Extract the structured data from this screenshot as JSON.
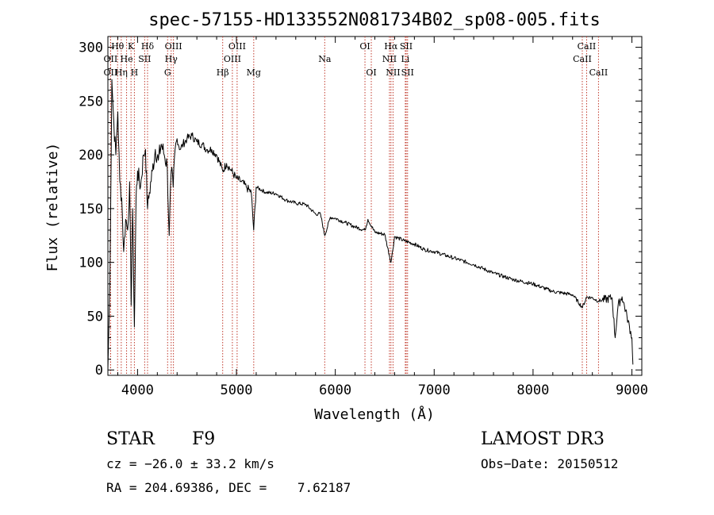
{
  "chart_data": {
    "type": "line",
    "title": "spec-57155-HD133552N081734B02_sp08-005.fits",
    "xlabel": "Wavelength (Å)",
    "ylabel": "Flux (relative)",
    "xlim": [
      3700,
      9100
    ],
    "ylim": [
      -5,
      310
    ],
    "xticks": [
      4000,
      5000,
      6000,
      7000,
      8000,
      9000
    ],
    "yticks": [
      0,
      50,
      100,
      150,
      200,
      250,
      300
    ],
    "series": [
      {
        "name": "flux",
        "x": [
          3700,
          3720,
          3740,
          3760,
          3780,
          3800,
          3820,
          3840,
          3860,
          3880,
          3900,
          3920,
          3935,
          3950,
          3968,
          3985,
          4000,
          4030,
          4060,
          4080,
          4101,
          4120,
          4150,
          4180,
          4210,
          4240,
          4270,
          4300,
          4320,
          4340,
          4360,
          4380,
          4400,
          4430,
          4460,
          4500,
          4550,
          4600,
          4650,
          4700,
          4750,
          4800,
          4861,
          4900,
          4950,
          5000,
          5050,
          5100,
          5150,
          5175,
          5200,
          5300,
          5400,
          5500,
          5600,
          5700,
          5800,
          5850,
          5893,
          5950,
          6000,
          6100,
          6200,
          6300,
          6330,
          6400,
          6500,
          6563,
          6600,
          6700,
          6800,
          6900,
          7000,
          7200,
          7400,
          7600,
          7800,
          8000,
          8200,
          8400,
          8500,
          8542,
          8600,
          8662,
          8700,
          8800,
          8830,
          8860,
          8900,
          8950,
          9000,
          9010
        ],
        "y": [
          0,
          80,
          270,
          230,
          200,
          240,
          175,
          160,
          110,
          140,
          130,
          175,
          60,
          150,
          40,
          160,
          185,
          170,
          200,
          205,
          150,
          165,
          185,
          205,
          195,
          210,
          200,
          190,
          125,
          185,
          170,
          205,
          215,
          205,
          210,
          215,
          218,
          212,
          210,
          205,
          205,
          200,
          185,
          192,
          185,
          178,
          175,
          170,
          165,
          130,
          170,
          165,
          164,
          158,
          155,
          154,
          145,
          145,
          125,
          142,
          141,
          137,
          133,
          130,
          140,
          128,
          126,
          100,
          124,
          120,
          117,
          112,
          110,
          104,
          98,
          90,
          84,
          80,
          73,
          70,
          58,
          68,
          67,
          64,
          65,
          67,
          30,
          60,
          68,
          50,
          30,
          5
        ]
      }
    ],
    "lines": [
      {
        "label": "OII",
        "wl": 3727,
        "row": 2
      },
      {
        "label": "Hθ",
        "wl": 3798,
        "row": 1
      },
      {
        "label": "OII",
        "wl": 3727,
        "row": 3
      },
      {
        "label": "Hη",
        "wl": 3835,
        "row": 3
      },
      {
        "label": "He",
        "wl": 3889,
        "row": 2
      },
      {
        "label": "K",
        "wl": 3934,
        "row": 1
      },
      {
        "label": "H",
        "wl": 3968,
        "row": 3
      },
      {
        "label": "SII",
        "wl": 4072,
        "row": 2
      },
      {
        "label": "Hδ",
        "wl": 4101,
        "row": 1
      },
      {
        "label": "G",
        "wl": 4304,
        "row": 3
      },
      {
        "label": "OIII",
        "wl": 4363,
        "row": 1
      },
      {
        "label": "Hγ",
        "wl": 4340,
        "row": 2
      },
      {
        "label": "Hβ",
        "wl": 4861,
        "row": 3
      },
      {
        "label": "OIII",
        "wl": 4959,
        "row": 2
      },
      {
        "label": "OIII",
        "wl": 5007,
        "row": 1
      },
      {
        "label": "Mg",
        "wl": 5175,
        "row": 3
      },
      {
        "label": "Na",
        "wl": 5893,
        "row": 2
      },
      {
        "label": "OI",
        "wl": 6300,
        "row": 1
      },
      {
        "label": "OI",
        "wl": 6364,
        "row": 3
      },
      {
        "label": "NII",
        "wl": 6548,
        "row": 2
      },
      {
        "label": "Hα",
        "wl": 6563,
        "row": 1
      },
      {
        "label": "NII",
        "wl": 6584,
        "row": 3
      },
      {
        "label": "SII",
        "wl": 6717,
        "row": 1
      },
      {
        "label": "Li",
        "wl": 6708,
        "row": 2
      },
      {
        "label": "SII",
        "wl": 6731,
        "row": 3
      },
      {
        "label": "CaII",
        "wl": 8498,
        "row": 2
      },
      {
        "label": "CaII",
        "wl": 8542,
        "row": 1
      },
      {
        "label": "CaII",
        "wl": 8662,
        "row": 3
      }
    ]
  },
  "info": {
    "object_class": "STAR",
    "subclass": "F9",
    "survey": "LAMOST DR3",
    "cz": "cz = −26.0 ± 33.2 km/s",
    "obs_date": "Obs−Date: 20150512",
    "coords": "RA = 204.69386, DEC =    7.62187"
  },
  "colors": {
    "spectrum": "#000000",
    "line_marker": "#c0392b",
    "axis": "#000000"
  }
}
